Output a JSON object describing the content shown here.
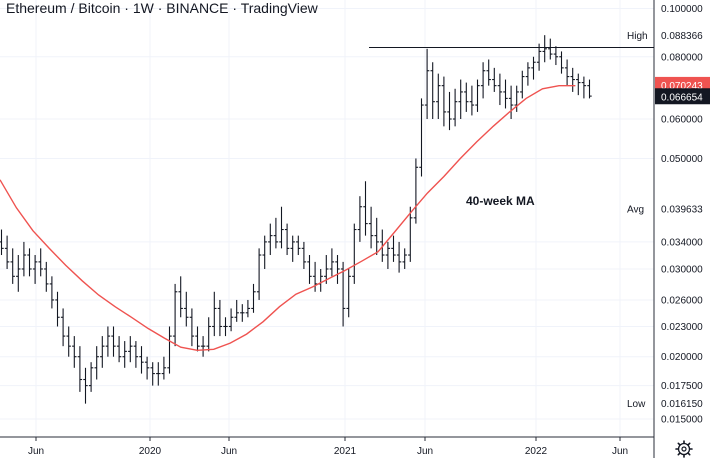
{
  "chart_data": {
    "type": "ohlc",
    "title": "Ethereum / Bitcoin · 1W · BINANCE · TradingView",
    "x_axis_labels": [
      "Jun",
      "2020",
      "Jun",
      "2021",
      "Jun",
      "2022",
      "Jun"
    ],
    "y_scale": "log",
    "y_range": [
      0.0138,
      0.104
    ],
    "y_ticks": [
      "0.100000",
      "0.080000",
      "0.060000",
      "0.050000",
      "0.034000",
      "0.030000",
      "0.026000",
      "0.023000",
      "0.020000",
      "0.017500",
      "0.015000"
    ],
    "markers": [
      {
        "label": "High",
        "value": "0.088366",
        "color": "#ffffff"
      },
      {
        "label": "Avg",
        "value": "0.039633",
        "color": "#ffffff"
      },
      {
        "label": "Low",
        "value": "0.016150",
        "color": "#ffffff"
      },
      {
        "label": "",
        "value": "0.070243",
        "color": "#ef5350"
      },
      {
        "label": "",
        "value": "0.066654",
        "color": "#131722"
      }
    ],
    "annotation": "40-week MA",
    "high_line_value": 0.0835,
    "ma_line": [
      [
        0,
        0.0453
      ],
      [
        4,
        0.0398
      ],
      [
        8,
        0.0358
      ],
      [
        12,
        0.033
      ],
      [
        16,
        0.0305
      ],
      [
        20,
        0.0284
      ],
      [
        24,
        0.0266
      ],
      [
        28,
        0.0252
      ],
      [
        32,
        0.024
      ],
      [
        36,
        0.0228
      ],
      [
        40,
        0.0218
      ],
      [
        44,
        0.0209
      ],
      [
        48,
        0.0206
      ],
      [
        52,
        0.0207
      ],
      [
        56,
        0.0213
      ],
      [
        60,
        0.0222
      ],
      [
        64,
        0.0235
      ],
      [
        68,
        0.0252
      ],
      [
        72,
        0.0267
      ],
      [
        76,
        0.0276
      ],
      [
        80,
        0.0287
      ],
      [
        84,
        0.0298
      ],
      [
        88,
        0.0311
      ],
      [
        92,
        0.0325
      ],
      [
        96,
        0.0356
      ],
      [
        100,
        0.039
      ],
      [
        104,
        0.0426
      ],
      [
        108,
        0.046
      ],
      [
        112,
        0.05
      ],
      [
        116,
        0.054
      ],
      [
        120,
        0.058
      ],
      [
        124,
        0.062
      ],
      [
        128,
        0.066
      ],
      [
        132,
        0.069
      ],
      [
        136,
        0.07
      ],
      [
        140,
        0.07
      ]
    ],
    "bars": [
      [
        0.034,
        0.036,
        0.032,
        0.033
      ],
      [
        0.033,
        0.035,
        0.03,
        0.031
      ],
      [
        0.031,
        0.033,
        0.028,
        0.029
      ],
      [
        0.029,
        0.032,
        0.027,
        0.03
      ],
      [
        0.03,
        0.034,
        0.029,
        0.032
      ],
      [
        0.032,
        0.033,
        0.029,
        0.03
      ],
      [
        0.03,
        0.032,
        0.028,
        0.031
      ],
      [
        0.031,
        0.033,
        0.029,
        0.03
      ],
      [
        0.03,
        0.031,
        0.027,
        0.028
      ],
      [
        0.028,
        0.029,
        0.025,
        0.026
      ],
      [
        0.026,
        0.027,
        0.023,
        0.024
      ],
      [
        0.024,
        0.025,
        0.021,
        0.022
      ],
      [
        0.022,
        0.023,
        0.02,
        0.021
      ],
      [
        0.021,
        0.022,
        0.019,
        0.02
      ],
      [
        0.02,
        0.021,
        0.017,
        0.018
      ],
      [
        0.018,
        0.019,
        0.0161,
        0.0175
      ],
      [
        0.0175,
        0.0195,
        0.017,
        0.019
      ],
      [
        0.019,
        0.021,
        0.018,
        0.02
      ],
      [
        0.02,
        0.022,
        0.019,
        0.021
      ],
      [
        0.021,
        0.023,
        0.02,
        0.022
      ],
      [
        0.022,
        0.023,
        0.02,
        0.021
      ],
      [
        0.021,
        0.022,
        0.0195,
        0.02
      ],
      [
        0.02,
        0.0215,
        0.019,
        0.0205
      ],
      [
        0.0205,
        0.022,
        0.0195,
        0.021
      ],
      [
        0.021,
        0.0215,
        0.019,
        0.02
      ],
      [
        0.02,
        0.021,
        0.0185,
        0.0195
      ],
      [
        0.0195,
        0.02,
        0.018,
        0.019
      ],
      [
        0.019,
        0.0195,
        0.0175,
        0.0185
      ],
      [
        0.0185,
        0.0195,
        0.0175,
        0.0185
      ],
      [
        0.0185,
        0.02,
        0.018,
        0.019
      ],
      [
        0.019,
        0.023,
        0.0185,
        0.022
      ],
      [
        0.022,
        0.028,
        0.021,
        0.027
      ],
      [
        0.027,
        0.029,
        0.024,
        0.025
      ],
      [
        0.025,
        0.027,
        0.023,
        0.024
      ],
      [
        0.024,
        0.025,
        0.021,
        0.022
      ],
      [
        0.022,
        0.023,
        0.0205,
        0.021
      ],
      [
        0.021,
        0.022,
        0.02,
        0.021
      ],
      [
        0.021,
        0.024,
        0.0205,
        0.023
      ],
      [
        0.023,
        0.027,
        0.022,
        0.025
      ],
      [
        0.025,
        0.026,
        0.022,
        0.023
      ],
      [
        0.023,
        0.024,
        0.022,
        0.023
      ],
      [
        0.023,
        0.025,
        0.0225,
        0.024
      ],
      [
        0.024,
        0.026,
        0.0235,
        0.0245
      ],
      [
        0.0245,
        0.0255,
        0.0235,
        0.0245
      ],
      [
        0.0245,
        0.026,
        0.024,
        0.025
      ],
      [
        0.025,
        0.028,
        0.0245,
        0.027
      ],
      [
        0.027,
        0.033,
        0.026,
        0.032
      ],
      [
        0.032,
        0.035,
        0.03,
        0.034
      ],
      [
        0.034,
        0.037,
        0.032,
        0.035
      ],
      [
        0.035,
        0.038,
        0.033,
        0.034
      ],
      [
        0.034,
        0.04,
        0.033,
        0.036
      ],
      [
        0.036,
        0.037,
        0.032,
        0.033
      ],
      [
        0.033,
        0.035,
        0.031,
        0.034
      ],
      [
        0.034,
        0.035,
        0.032,
        0.033
      ],
      [
        0.033,
        0.034,
        0.03,
        0.031
      ],
      [
        0.031,
        0.032,
        0.028,
        0.029
      ],
      [
        0.029,
        0.031,
        0.027,
        0.028
      ],
      [
        0.028,
        0.03,
        0.027,
        0.029
      ],
      [
        0.029,
        0.032,
        0.028,
        0.03
      ],
      [
        0.03,
        0.033,
        0.029,
        0.031
      ],
      [
        0.031,
        0.032,
        0.028,
        0.03
      ],
      [
        0.03,
        0.031,
        0.023,
        0.025
      ],
      [
        0.025,
        0.03,
        0.024,
        0.029
      ],
      [
        0.029,
        0.037,
        0.028,
        0.036
      ],
      [
        0.036,
        0.042,
        0.034,
        0.04
      ],
      [
        0.04,
        0.045,
        0.035,
        0.037
      ],
      [
        0.037,
        0.04,
        0.033,
        0.035
      ],
      [
        0.035,
        0.038,
        0.032,
        0.034
      ],
      [
        0.034,
        0.036,
        0.031,
        0.032
      ],
      [
        0.032,
        0.034,
        0.03,
        0.033
      ],
      [
        0.033,
        0.035,
        0.031,
        0.032
      ],
      [
        0.032,
        0.034,
        0.0295,
        0.031
      ],
      [
        0.031,
        0.033,
        0.03,
        0.032
      ],
      [
        0.032,
        0.04,
        0.031,
        0.038
      ],
      [
        0.038,
        0.05,
        0.037,
        0.048
      ],
      [
        0.048,
        0.066,
        0.046,
        0.064
      ],
      [
        0.064,
        0.083,
        0.06,
        0.075
      ],
      [
        0.075,
        0.078,
        0.06,
        0.065
      ],
      [
        0.065,
        0.074,
        0.06,
        0.07
      ],
      [
        0.07,
        0.073,
        0.058,
        0.062
      ],
      [
        0.062,
        0.068,
        0.057,
        0.06
      ],
      [
        0.06,
        0.069,
        0.058,
        0.065
      ],
      [
        0.065,
        0.072,
        0.06,
        0.068
      ],
      [
        0.068,
        0.071,
        0.062,
        0.065
      ],
      [
        0.065,
        0.07,
        0.061,
        0.064
      ],
      [
        0.064,
        0.072,
        0.062,
        0.07
      ],
      [
        0.07,
        0.078,
        0.066,
        0.075
      ],
      [
        0.075,
        0.079,
        0.07,
        0.072
      ],
      [
        0.072,
        0.076,
        0.068,
        0.07
      ],
      [
        0.07,
        0.074,
        0.064,
        0.068
      ],
      [
        0.068,
        0.072,
        0.063,
        0.066
      ],
      [
        0.066,
        0.07,
        0.06,
        0.064
      ],
      [
        0.064,
        0.07,
        0.062,
        0.068
      ],
      [
        0.068,
        0.075,
        0.066,
        0.073
      ],
      [
        0.073,
        0.078,
        0.07,
        0.076
      ],
      [
        0.076,
        0.08,
        0.072,
        0.078
      ],
      [
        0.078,
        0.085,
        0.075,
        0.082
      ],
      [
        0.082,
        0.0884,
        0.078,
        0.083
      ],
      [
        0.083,
        0.087,
        0.079,
        0.081
      ],
      [
        0.081,
        0.084,
        0.077,
        0.08
      ],
      [
        0.08,
        0.082,
        0.074,
        0.076
      ],
      [
        0.076,
        0.079,
        0.07,
        0.073
      ],
      [
        0.073,
        0.076,
        0.068,
        0.072
      ],
      [
        0.072,
        0.074,
        0.067,
        0.071
      ],
      [
        0.071,
        0.073,
        0.066,
        0.07
      ],
      [
        0.07,
        0.072,
        0.066,
        0.0667
      ]
    ]
  }
}
